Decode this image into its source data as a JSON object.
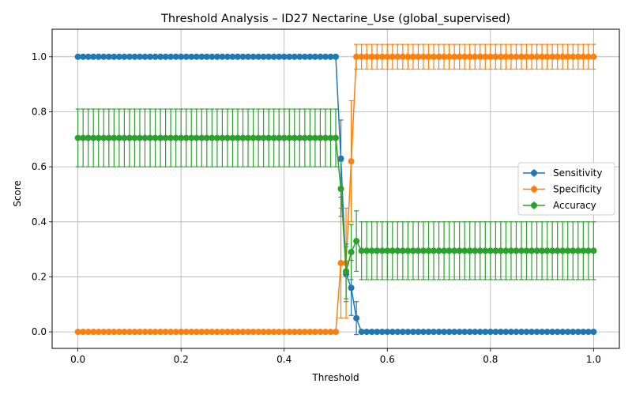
{
  "chart_data": {
    "type": "line",
    "title": "Threshold Analysis – ID27 Nectarine_Use (global_supervised)",
    "xlabel": "Threshold",
    "ylabel": "Score",
    "xlim": [
      -0.05,
      1.05
    ],
    "ylim": [
      -0.06,
      1.1
    ],
    "xticks": [
      0.0,
      0.2,
      0.4,
      0.6,
      0.8,
      1.0
    ],
    "xtick_labels": [
      "0.0",
      "0.2",
      "0.4",
      "0.6",
      "0.8",
      "1.0"
    ],
    "yticks": [
      0.0,
      0.2,
      0.4,
      0.6,
      0.8,
      1.0
    ],
    "ytick_labels": [
      "0.0",
      "0.2",
      "0.4",
      "0.6",
      "0.8",
      "1.0"
    ],
    "grid": true,
    "legend_position": "center-right",
    "x": [
      0.0,
      0.01,
      0.02,
      0.03,
      0.04,
      0.05,
      0.06,
      0.07,
      0.08,
      0.09,
      0.1,
      0.11,
      0.12,
      0.13,
      0.14,
      0.15,
      0.16,
      0.17,
      0.18,
      0.19,
      0.2,
      0.21,
      0.22,
      0.23,
      0.24,
      0.25,
      0.26,
      0.27,
      0.28,
      0.29,
      0.3,
      0.31,
      0.32,
      0.33,
      0.34,
      0.35,
      0.36,
      0.37,
      0.38,
      0.39,
      0.4,
      0.41,
      0.42,
      0.43,
      0.44,
      0.45,
      0.46,
      0.47,
      0.48,
      0.49,
      0.5,
      0.51,
      0.52,
      0.53,
      0.54,
      0.55,
      0.56,
      0.57,
      0.58,
      0.59,
      0.6,
      0.61,
      0.62,
      0.63,
      0.64,
      0.65,
      0.66,
      0.67,
      0.68,
      0.69,
      0.7,
      0.71,
      0.72,
      0.73,
      0.74,
      0.75,
      0.76,
      0.77,
      0.78,
      0.79,
      0.8,
      0.81,
      0.82,
      0.83,
      0.84,
      0.85,
      0.86,
      0.87,
      0.88,
      0.89,
      0.9,
      0.91,
      0.92,
      0.93,
      0.94,
      0.95,
      0.96,
      0.97,
      0.98,
      0.99,
      1.0
    ],
    "series": [
      {
        "name": "Sensitivity",
        "color": "#1f77b4",
        "values": [
          1,
          1,
          1,
          1,
          1,
          1,
          1,
          1,
          1,
          1,
          1,
          1,
          1,
          1,
          1,
          1,
          1,
          1,
          1,
          1,
          1,
          1,
          1,
          1,
          1,
          1,
          1,
          1,
          1,
          1,
          1,
          1,
          1,
          1,
          1,
          1,
          1,
          1,
          1,
          1,
          1,
          1,
          1,
          1,
          1,
          1,
          1,
          1,
          1,
          1,
          1,
          0.63,
          0.21,
          0.16,
          0.05,
          0,
          0,
          0,
          0,
          0,
          0,
          0,
          0,
          0,
          0,
          0,
          0,
          0,
          0,
          0,
          0,
          0,
          0,
          0,
          0,
          0,
          0,
          0,
          0,
          0,
          0,
          0,
          0,
          0,
          0,
          0,
          0,
          0,
          0,
          0,
          0,
          0,
          0,
          0,
          0,
          0,
          0,
          0,
          0,
          0,
          0
        ],
        "errors": [
          0,
          0,
          0,
          0,
          0,
          0,
          0,
          0,
          0,
          0,
          0,
          0,
          0,
          0,
          0,
          0,
          0,
          0,
          0,
          0,
          0,
          0,
          0,
          0,
          0,
          0,
          0,
          0,
          0,
          0,
          0,
          0,
          0,
          0,
          0,
          0,
          0,
          0,
          0,
          0,
          0,
          0,
          0,
          0,
          0,
          0,
          0,
          0,
          0,
          0,
          0,
          0.14,
          0.1,
          0.1,
          0.06,
          0,
          0,
          0,
          0,
          0,
          0,
          0,
          0,
          0,
          0,
          0,
          0,
          0,
          0,
          0,
          0,
          0,
          0,
          0,
          0,
          0,
          0,
          0,
          0,
          0,
          0,
          0,
          0,
          0,
          0,
          0,
          0,
          0,
          0,
          0,
          0,
          0,
          0,
          0,
          0,
          0,
          0,
          0,
          0,
          0,
          0
        ]
      },
      {
        "name": "Specificity",
        "color": "#ff7f0e",
        "values": [
          0,
          0,
          0,
          0,
          0,
          0,
          0,
          0,
          0,
          0,
          0,
          0,
          0,
          0,
          0,
          0,
          0,
          0,
          0,
          0,
          0,
          0,
          0,
          0,
          0,
          0,
          0,
          0,
          0,
          0,
          0,
          0,
          0,
          0,
          0,
          0,
          0,
          0,
          0,
          0,
          0,
          0,
          0,
          0,
          0,
          0,
          0,
          0,
          0,
          0,
          0,
          0.25,
          0.25,
          0.62,
          1,
          1,
          1,
          1,
          1,
          1,
          1,
          1,
          1,
          1,
          1,
          1,
          1,
          1,
          1,
          1,
          1,
          1,
          1,
          1,
          1,
          1,
          1,
          1,
          1,
          1,
          1,
          1,
          1,
          1,
          1,
          1,
          1,
          1,
          1,
          1,
          1,
          1,
          1,
          1,
          1,
          1,
          1,
          1,
          1,
          1,
          1
        ],
        "errors": [
          0,
          0,
          0,
          0,
          0,
          0,
          0,
          0,
          0,
          0,
          0,
          0,
          0,
          0,
          0,
          0,
          0,
          0,
          0,
          0,
          0,
          0,
          0,
          0,
          0,
          0,
          0,
          0,
          0,
          0,
          0,
          0,
          0,
          0,
          0,
          0,
          0,
          0,
          0,
          0,
          0,
          0,
          0,
          0,
          0,
          0,
          0,
          0,
          0,
          0,
          0,
          0.2,
          0.2,
          0.22,
          0.045,
          0.045,
          0.045,
          0.045,
          0.045,
          0.045,
          0.045,
          0.045,
          0.045,
          0.045,
          0.045,
          0.045,
          0.045,
          0.045,
          0.045,
          0.045,
          0.045,
          0.045,
          0.045,
          0.045,
          0.045,
          0.045,
          0.045,
          0.045,
          0.045,
          0.045,
          0.045,
          0.045,
          0.045,
          0.045,
          0.045,
          0.045,
          0.045,
          0.045,
          0.045,
          0.045,
          0.045,
          0.045,
          0.045,
          0.045,
          0.045,
          0.045,
          0.045,
          0.045,
          0.045,
          0.045,
          0.045
        ]
      },
      {
        "name": "Accuracy",
        "color": "#2ca02c",
        "values": [
          0.705,
          0.705,
          0.705,
          0.705,
          0.705,
          0.705,
          0.705,
          0.705,
          0.705,
          0.705,
          0.705,
          0.705,
          0.705,
          0.705,
          0.705,
          0.705,
          0.705,
          0.705,
          0.705,
          0.705,
          0.705,
          0.705,
          0.705,
          0.705,
          0.705,
          0.705,
          0.705,
          0.705,
          0.705,
          0.705,
          0.705,
          0.705,
          0.705,
          0.705,
          0.705,
          0.705,
          0.705,
          0.705,
          0.705,
          0.705,
          0.705,
          0.705,
          0.705,
          0.705,
          0.705,
          0.705,
          0.705,
          0.705,
          0.705,
          0.705,
          0.705,
          0.52,
          0.22,
          0.29,
          0.33,
          0.295,
          0.295,
          0.295,
          0.295,
          0.295,
          0.295,
          0.295,
          0.295,
          0.295,
          0.295,
          0.295,
          0.295,
          0.295,
          0.295,
          0.295,
          0.295,
          0.295,
          0.295,
          0.295,
          0.295,
          0.295,
          0.295,
          0.295,
          0.295,
          0.295,
          0.295,
          0.295,
          0.295,
          0.295,
          0.295,
          0.295,
          0.295,
          0.295,
          0.295,
          0.295,
          0.295,
          0.295,
          0.295,
          0.295,
          0.295,
          0.295,
          0.295,
          0.295,
          0.295,
          0.295,
          0.295
        ],
        "errors": [
          0.105,
          0.105,
          0.105,
          0.105,
          0.105,
          0.105,
          0.105,
          0.105,
          0.105,
          0.105,
          0.105,
          0.105,
          0.105,
          0.105,
          0.105,
          0.105,
          0.105,
          0.105,
          0.105,
          0.105,
          0.105,
          0.105,
          0.105,
          0.105,
          0.105,
          0.105,
          0.105,
          0.105,
          0.105,
          0.105,
          0.105,
          0.105,
          0.105,
          0.105,
          0.105,
          0.105,
          0.105,
          0.105,
          0.105,
          0.105,
          0.105,
          0.105,
          0.105,
          0.105,
          0.105,
          0.105,
          0.105,
          0.105,
          0.105,
          0.105,
          0.105,
          0.1,
          0.1,
          0.1,
          0.11,
          0.105,
          0.105,
          0.105,
          0.105,
          0.105,
          0.105,
          0.105,
          0.105,
          0.105,
          0.105,
          0.105,
          0.105,
          0.105,
          0.105,
          0.105,
          0.105,
          0.105,
          0.105,
          0.105,
          0.105,
          0.105,
          0.105,
          0.105,
          0.105,
          0.105,
          0.105,
          0.105,
          0.105,
          0.105,
          0.105,
          0.105,
          0.105,
          0.105,
          0.105,
          0.105,
          0.105,
          0.105,
          0.105,
          0.105,
          0.105,
          0.105,
          0.105,
          0.105,
          0.105,
          0.105,
          0.105
        ]
      }
    ]
  }
}
